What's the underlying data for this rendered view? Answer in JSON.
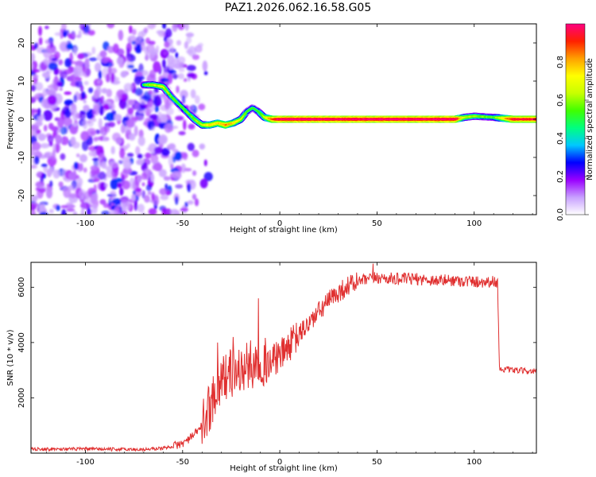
{
  "title": "PAZ1.2026.062.16.58.G05",
  "chart_data": [
    {
      "type": "heatmap",
      "name": "spectrogram",
      "xlabel": "Height of straight line (km)",
      "ylabel": "Frequency (Hz)",
      "xlim": [
        -128,
        132
      ],
      "ylim": [
        -25,
        25
      ],
      "xticks": [
        -100,
        -50,
        0,
        50,
        100
      ],
      "yticks": [
        -20,
        -10,
        0,
        10,
        20
      ],
      "noise_region_x": [
        -128,
        -55
      ],
      "ridge": {
        "x": [
          -70,
          -65,
          -60,
          -56,
          -52,
          -48,
          -44,
          -40,
          -36,
          -32,
          -28,
          -24,
          -20,
          -17,
          -14,
          -11,
          -8,
          -4,
          0,
          20,
          40,
          60,
          80,
          90,
          95,
          100,
          110,
          120,
          132
        ],
        "freq": [
          9,
          9,
          8.5,
          6,
          4,
          2,
          0,
          -1.5,
          -1.5,
          -1,
          -1.5,
          -1,
          0,
          2,
          3,
          2,
          0.5,
          0,
          0,
          0,
          0,
          0,
          0,
          0,
          0.5,
          0.8,
          0.5,
          0,
          0
        ],
        "amp": [
          0.5,
          0.6,
          0.6,
          0.5,
          0.5,
          0.5,
          0.55,
          0.6,
          0.7,
          0.7,
          0.8,
          0.7,
          0.6,
          0.5,
          0.45,
          0.5,
          0.6,
          0.85,
          0.95,
          0.95,
          0.95,
          0.95,
          0.95,
          0.95,
          0.6,
          0.55,
          0.5,
          0.9,
          0.9
        ]
      },
      "colorbar": {
        "label": "Normalized spectral amplitude",
        "range": [
          0,
          1
        ],
        "ticks": [
          "0.0",
          "0.2",
          "0.4",
          "0.6",
          "0.8"
        ],
        "tick_values": [
          0,
          0.2,
          0.4,
          0.6,
          0.8
        ],
        "colors": [
          "#ffffff",
          "#c8a0ff",
          "#9a00ff",
          "#0000ff",
          "#00c8ff",
          "#00ff80",
          "#40ff00",
          "#c8ff00",
          "#ffff00",
          "#ffa000",
          "#ff2000",
          "#ff0080"
        ]
      }
    },
    {
      "type": "line",
      "name": "snr",
      "xlabel": "Height of straight line (km)",
      "ylabel": "SNR (10 * v/v)",
      "xlim": [
        -128,
        132
      ],
      "ylim": [
        0,
        6900
      ],
      "xticks": [
        -100,
        -50,
        0,
        50,
        100
      ],
      "yticks": [
        2000,
        4000,
        6000
      ],
      "color": "#e03030",
      "envelope": {
        "x": [
          -128,
          -100,
          -70,
          -60,
          -55,
          -50,
          -45,
          -40,
          -36,
          -33,
          -30,
          -25,
          -20,
          -15,
          -10,
          -5,
          0,
          5,
          10,
          15,
          20,
          25,
          30,
          35,
          40,
          50,
          60,
          70,
          80,
          90,
          100,
          112,
          113,
          120,
          132
        ],
        "y": [
          150,
          150,
          130,
          180,
          250,
          350,
          600,
          1000,
          1700,
          2300,
          2700,
          2900,
          3000,
          3200,
          3300,
          3300,
          3500,
          3900,
          4300,
          4700,
          5100,
          5500,
          5800,
          6050,
          6200,
          6350,
          6300,
          6300,
          6250,
          6250,
          6200,
          6200,
          3050,
          3000,
          2950
        ]
      },
      "spikes": [
        {
          "x": -32,
          "y": 4000
        },
        {
          "x": -24,
          "y": 4200
        },
        {
          "x": -11,
          "y": 5600
        },
        {
          "x": -8,
          "y": 3900
        },
        {
          "x": 48,
          "y": 6850
        }
      ]
    }
  ]
}
